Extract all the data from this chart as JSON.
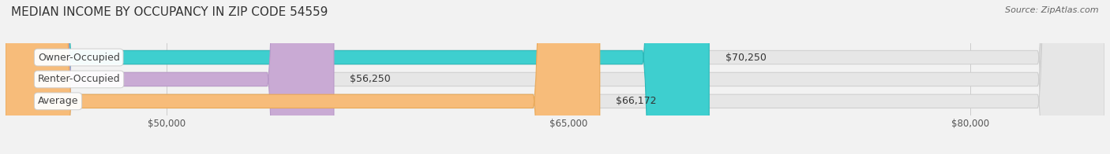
{
  "title": "MEDIAN INCOME BY OCCUPANCY IN ZIP CODE 54559",
  "source": "Source: ZipAtlas.com",
  "categories": [
    "Owner-Occupied",
    "Renter-Occupied",
    "Average"
  ],
  "values": [
    70250,
    56250,
    66172
  ],
  "value_labels": [
    "$70,250",
    "$56,250",
    "$66,172"
  ],
  "bar_colors": [
    "#3ecfcf",
    "#c9aad4",
    "#f7bc7a"
  ],
  "bar_edge_colors": [
    "#2ab8b8",
    "#b898c8",
    "#e8a858"
  ],
  "xlim_min": 0,
  "xlim_max": 85000,
  "display_xlim_min": 44000,
  "xticks": [
    50000,
    65000,
    80000
  ],
  "xtick_labels": [
    "$50,000",
    "$65,000",
    "$80,000"
  ],
  "background_color": "#f2f2f2",
  "bar_bg_color": "#e6e6e6",
  "title_fontsize": 11,
  "label_fontsize": 9,
  "tick_fontsize": 8.5,
  "source_fontsize": 8
}
